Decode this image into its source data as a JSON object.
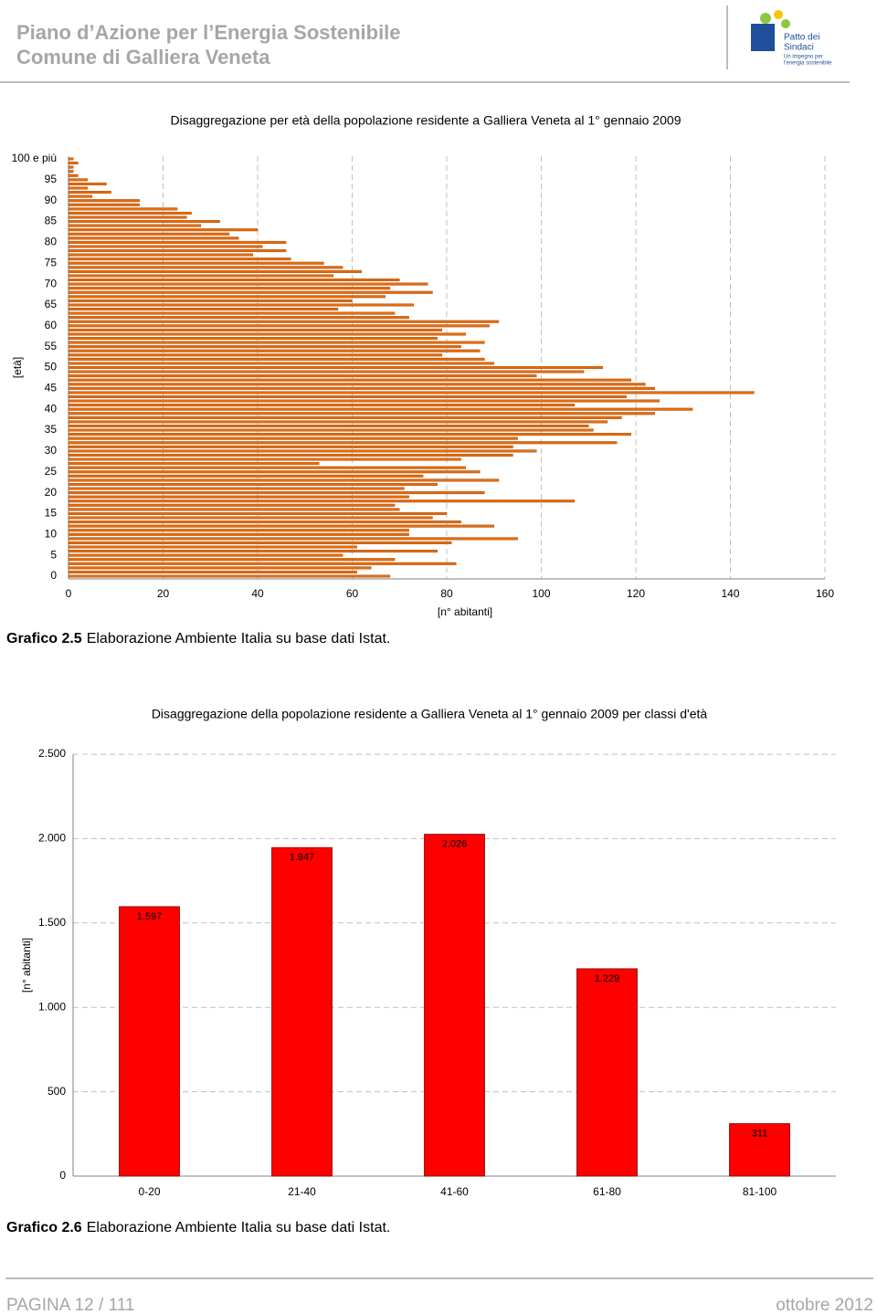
{
  "header": {
    "title": "Piano d’Azione per l’Energia Sostenibile",
    "subtitle": "Comune di Galliera Veneta",
    "logo": {
      "name_1": "Patto dei",
      "name_2": "Sindaci",
      "tagline_1": "Un impegno per",
      "tagline_2": "l'energia sostenibile"
    }
  },
  "chart_data": [
    {
      "type": "bar",
      "orientation": "horizontal",
      "title": "Disaggregazione per età della popolazione residente a Galliera Veneta al 1° gennaio 2009",
      "x_label": "[n° abitanti]",
      "y_label": "[età]",
      "categories": [
        "0",
        null,
        null,
        null,
        null,
        "5",
        null,
        null,
        null,
        null,
        "10",
        null,
        null,
        null,
        null,
        "15",
        null,
        null,
        null,
        null,
        "20",
        null,
        null,
        null,
        null,
        "25",
        null,
        null,
        null,
        null,
        "30",
        null,
        null,
        null,
        null,
        "35",
        null,
        null,
        null,
        null,
        "40",
        null,
        null,
        null,
        null,
        "45",
        null,
        null,
        null,
        null,
        "50",
        null,
        null,
        null,
        null,
        "55",
        null,
        null,
        null,
        null,
        "60",
        null,
        null,
        null,
        null,
        "65",
        null,
        null,
        null,
        null,
        "70",
        null,
        null,
        null,
        null,
        "75",
        null,
        null,
        null,
        null,
        "80",
        null,
        null,
        null,
        null,
        "85",
        null,
        null,
        null,
        null,
        "90",
        null,
        null,
        null,
        null,
        "95",
        null,
        null,
        null,
        null,
        "100 e più"
      ],
      "values": [
        68,
        61,
        64,
        82,
        69,
        58,
        78,
        61,
        81,
        95,
        72,
        72,
        90,
        83,
        77,
        80,
        70,
        69,
        107,
        72,
        88,
        71,
        78,
        91,
        75,
        87,
        84,
        53,
        83,
        94,
        99,
        94,
        116,
        95,
        119,
        111,
        110,
        114,
        117,
        124,
        132,
        107,
        125,
        118,
        145,
        124,
        122,
        119,
        99,
        109,
        113,
        90,
        88,
        79,
        87,
        83,
        88,
        78,
        84,
        79,
        89,
        91,
        72,
        69,
        57,
        73,
        60,
        67,
        77,
        68,
        76,
        70,
        56,
        62,
        58,
        54,
        47,
        39,
        46,
        41,
        46,
        36,
        34,
        40,
        28,
        32,
        25,
        26,
        23,
        15,
        15,
        5,
        9,
        4,
        8,
        4,
        2,
        1,
        1,
        2,
        1
      ],
      "color": "#e46c0a",
      "xlim": [
        0,
        160
      ],
      "xticks": [
        0,
        20,
        40,
        60,
        80,
        100,
        120,
        140,
        160
      ],
      "grid": true
    },
    {
      "type": "bar",
      "title": "Disaggregazione della popolazione residente a Galliera Veneta al 1° gennaio 2009 per classi d'età",
      "y_label": "[n° abitanti]",
      "categories": [
        "0-20",
        "21-40",
        "41-60",
        "61-80",
        "81-100"
      ],
      "values": [
        1597,
        1947,
        2026,
        1229,
        311
      ],
      "value_labels": [
        "1.597",
        "1.947",
        "2.026",
        "1.229",
        "311"
      ],
      "color": "#ff0000",
      "ylim": [
        0,
        2500
      ],
      "yticks": [
        0,
        500,
        {
          "value": 1000,
          "label": "1.000"
        },
        {
          "value": 1500,
          "label": "1.500"
        },
        {
          "value": 2000,
          "label": "2.000"
        },
        {
          "value": 2500,
          "label": "2.500"
        }
      ],
      "grid": true
    }
  ],
  "captions": [
    {
      "label": "Grafico 2.5",
      "text": "Elaborazione Ambiente Italia su base dati Istat."
    },
    {
      "label": "Grafico 2.6",
      "text": "Elaborazione Ambiente Italia su base dati Istat."
    }
  ],
  "footer": {
    "page": "PAGINA 12 / 111",
    "date": "ottobre 2012"
  }
}
